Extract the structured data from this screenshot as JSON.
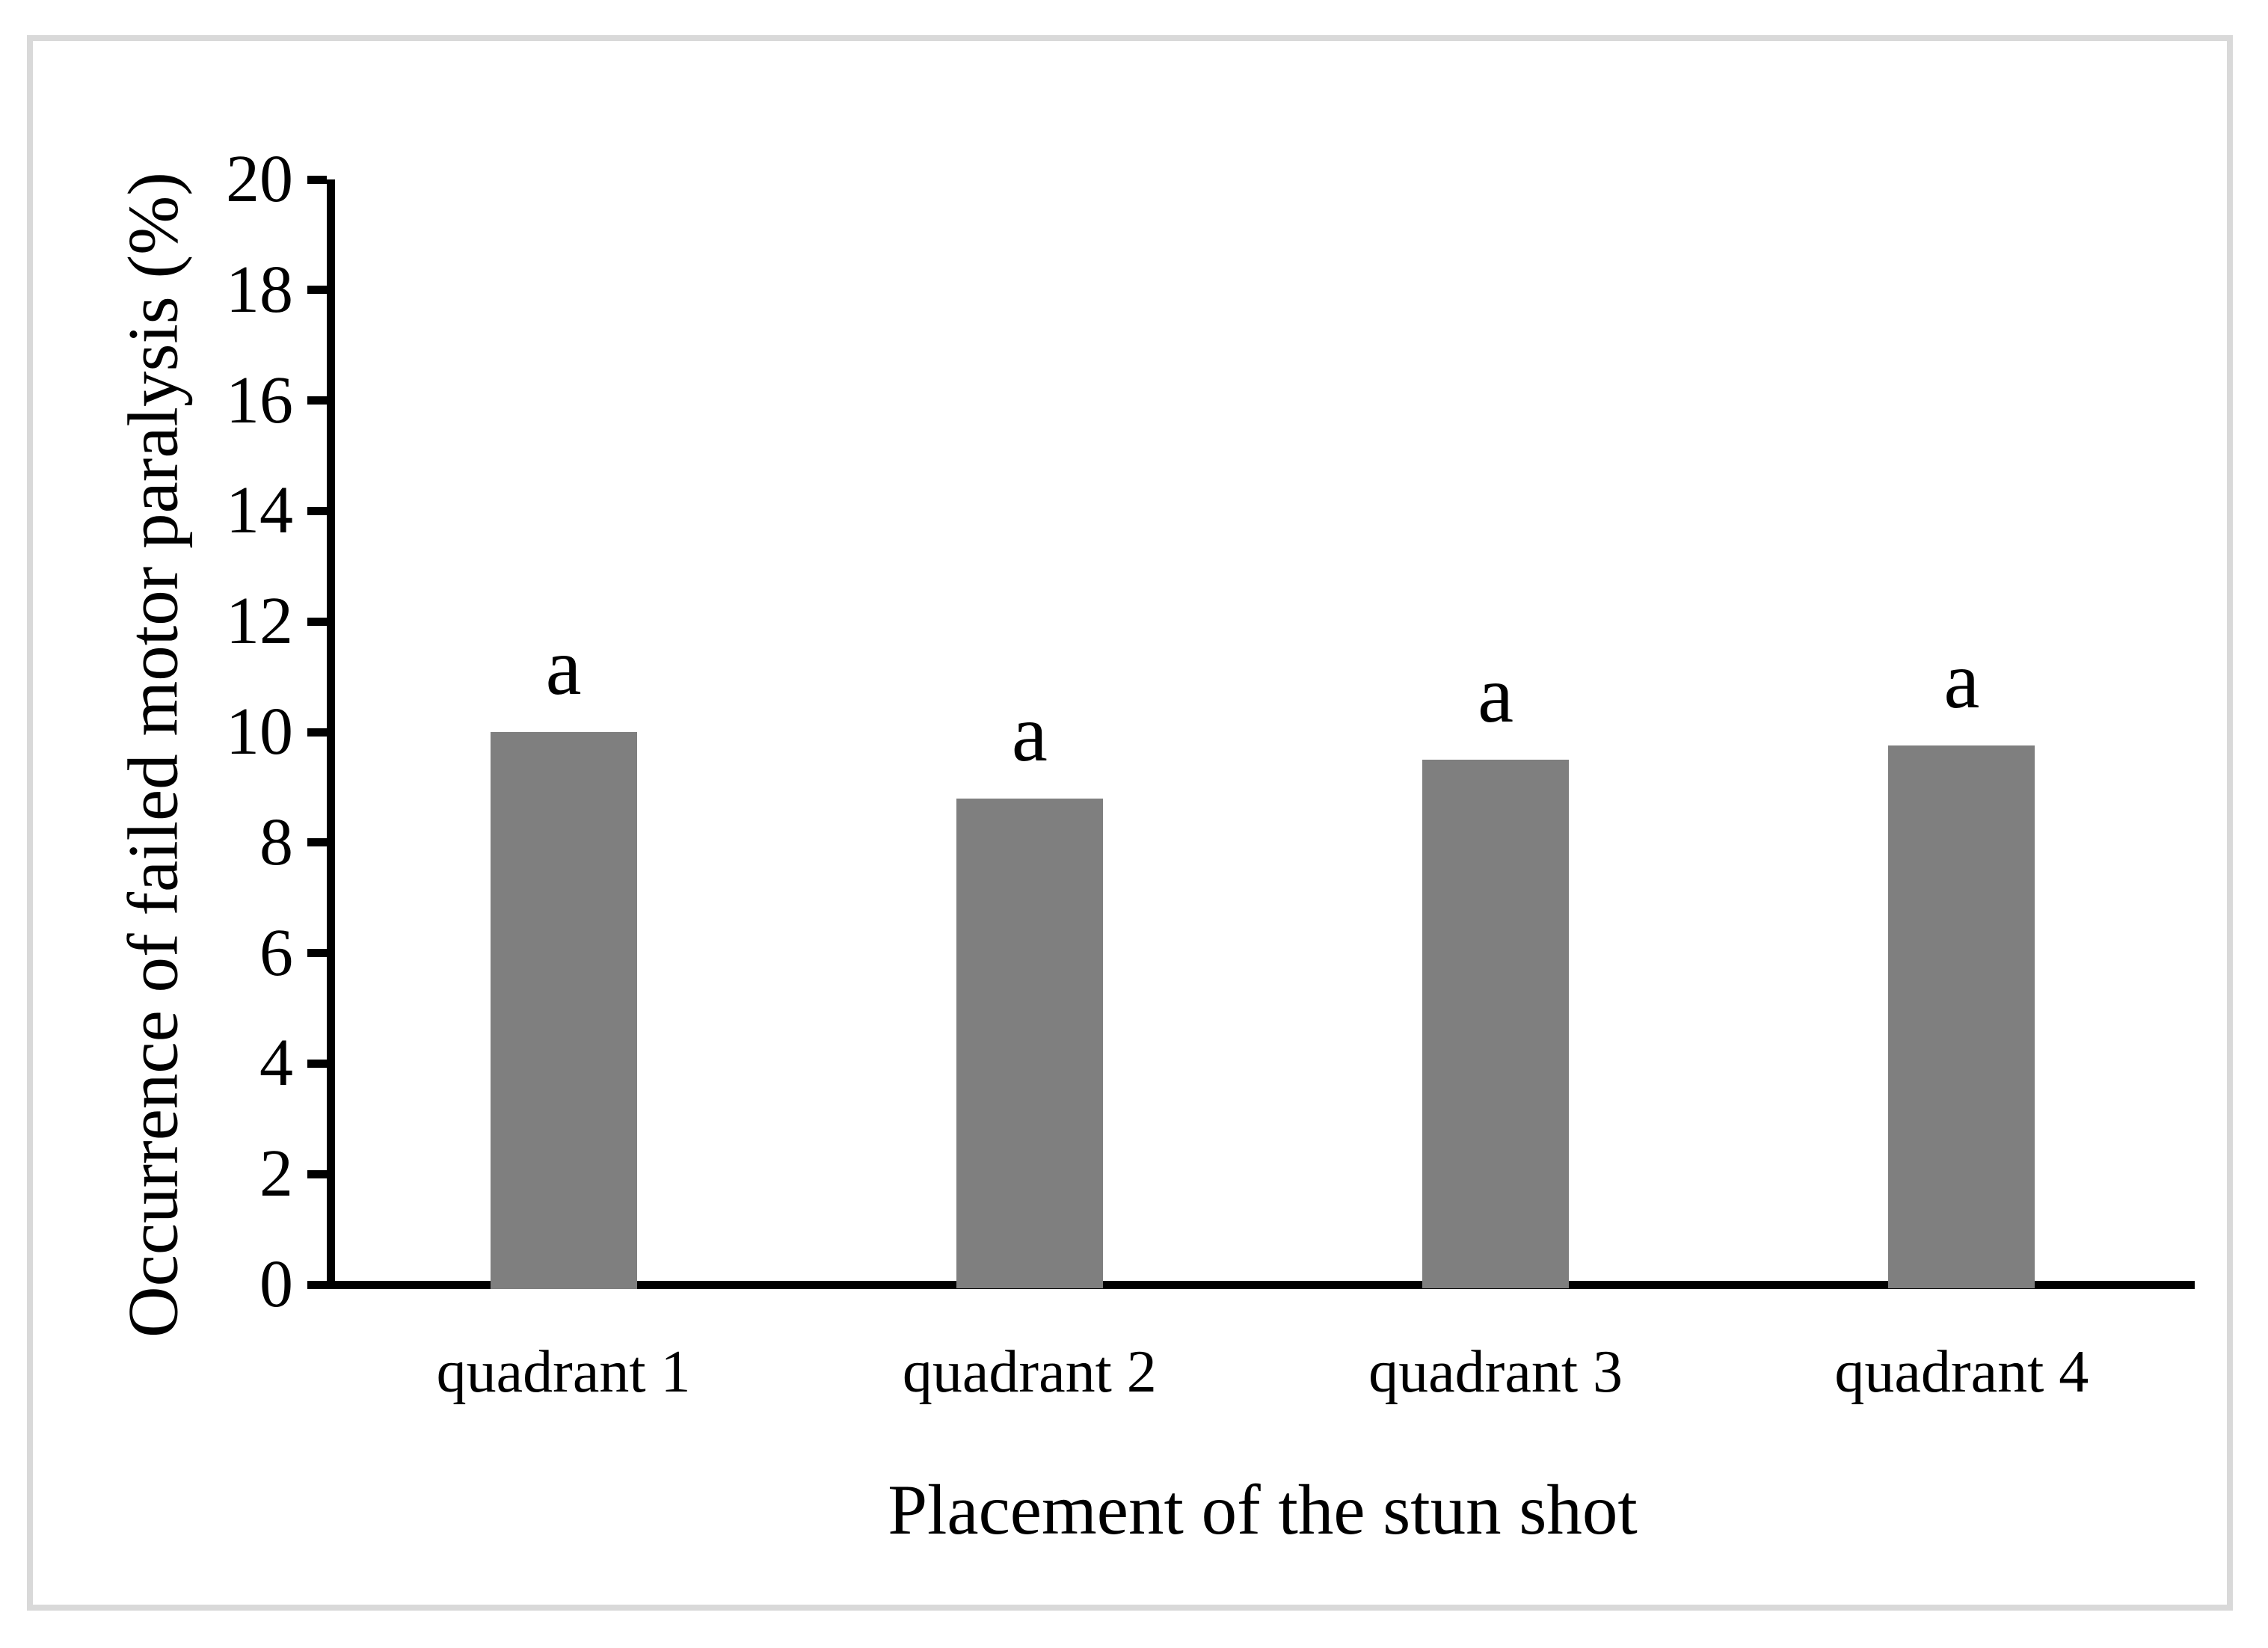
{
  "chart_data": {
    "type": "bar",
    "title": "",
    "xlabel": "Placement of the stun shot",
    "ylabel": "Occurrence of failed motor paralysis (%)",
    "categories": [
      "quadrant 1",
      "quadrant 2",
      "quadrant 3",
      "quadrant 4"
    ],
    "values": [
      10.0,
      8.8,
      9.5,
      9.75
    ],
    "bar_annotations": [
      "a",
      "a",
      "a",
      "a"
    ],
    "ylim": [
      0,
      20
    ],
    "yticks": [
      0,
      2,
      4,
      6,
      8,
      10,
      12,
      14,
      16,
      18,
      20
    ],
    "grid": "off",
    "legend": "none",
    "bar_color": "#7f7f7f",
    "axis_color": "#000000",
    "frame_color": "#d9d9d9"
  }
}
